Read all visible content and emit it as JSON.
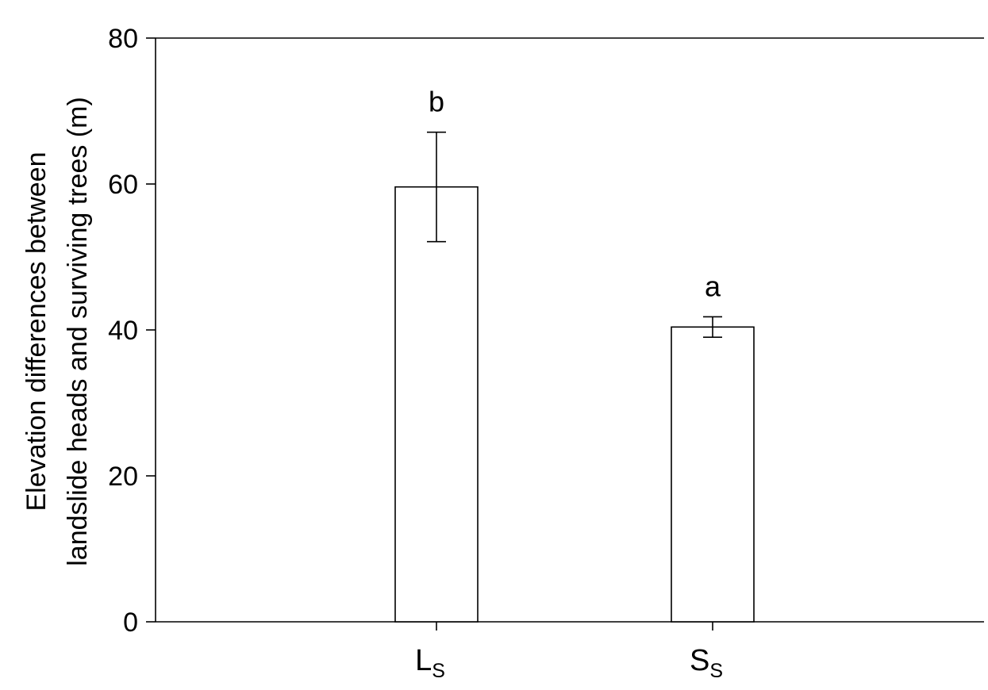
{
  "chart_data": {
    "type": "bar",
    "title": "",
    "xlabel": "",
    "ylabel": {
      "line1": "Elevation differences between",
      "line2": "landslide heads and surviving trees (m)"
    },
    "ylim": [
      0,
      80
    ],
    "yticks": [
      {
        "value": 0,
        "label": "0"
      },
      {
        "value": 20,
        "label": "20"
      },
      {
        "value": 40,
        "label": "40"
      },
      {
        "value": 60,
        "label": "60"
      },
      {
        "value": 80,
        "label": "80"
      }
    ],
    "categories": [
      {
        "main": "L",
        "sub": "S"
      },
      {
        "main": "S",
        "sub": "S"
      }
    ],
    "values": [
      59.6,
      40.4
    ],
    "errors": [
      7.5,
      1.4
    ],
    "significance": [
      "b",
      "a"
    ],
    "bar_fill": "#ffffff",
    "bar_stroke": "#000000",
    "grid": false,
    "legend": "none"
  }
}
